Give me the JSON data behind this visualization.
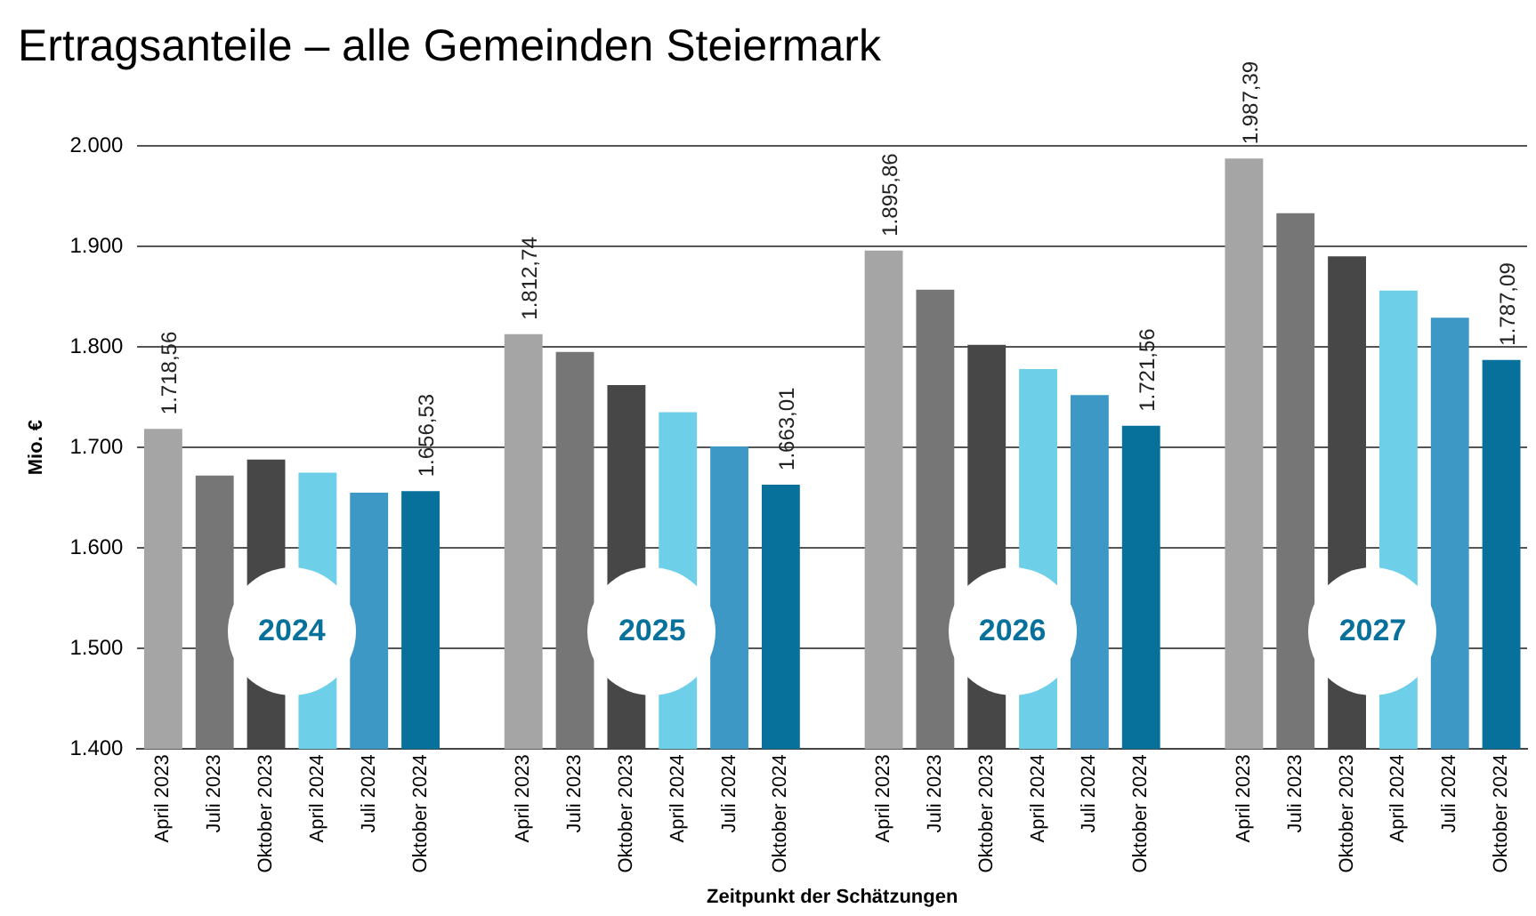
{
  "chart_data": {
    "type": "bar",
    "title": "Ertragsanteile – alle Gemeinden Steiermark",
    "xlabel": "Zeitpunkt der Schätzungen",
    "ylabel": "Mio. €",
    "categories": [
      "April 2023",
      "Juli 2023",
      "Oktober 2023",
      "April 2024",
      "Juli 2024",
      "Oktober 2024",
      null,
      "April 2023",
      "Juli 2023",
      "Oktober 2023",
      "April 2024",
      "Juli 2024",
      "Oktober 2024",
      null,
      "April 2023",
      "Juli 2023",
      "Oktober 2023",
      "April 2024",
      "Juli 2024",
      "Oktober 2024",
      null,
      "April 2023",
      "Juli 2023",
      "Oktober 2023",
      "April 2024",
      "Juli 2024",
      "Oktober 2024"
    ],
    "values": [
      1718.56,
      1672,
      1688,
      1675,
      1655,
      1656.53,
      null,
      1812.74,
      1795,
      1762,
      1735,
      1701,
      1663.01,
      null,
      1895.86,
      1857,
      1802,
      1778,
      1752,
      1721.56,
      null,
      1987.39,
      1933,
      1890,
      1856,
      1829,
      1787.09
    ],
    "value_labels": [
      "1.718,56",
      null,
      null,
      null,
      null,
      "1.656,53",
      null,
      "1.812,74",
      null,
      null,
      null,
      null,
      "1.663,01",
      null,
      "1.895,86",
      null,
      null,
      null,
      null,
      "1.721,56",
      null,
      "1.987,39",
      null,
      null,
      null,
      null,
      "1.787,09"
    ],
    "colors": [
      "#a5a5a5",
      "#767676",
      "#474747",
      "#6dcfe8",
      "#3e98c6",
      "#07719b",
      "#ffffff",
      "#a5a5a5",
      "#767676",
      "#474747",
      "#6dcfe8",
      "#3e98c6",
      "#07719b",
      "#ffffff",
      "#a5a5a5",
      "#767676",
      "#474747",
      "#6dcfe8",
      "#3e98c6",
      "#07719b",
      "#ffffff",
      "#a5a5a5",
      "#767676",
      "#474747",
      "#6dcfe8",
      "#3e98c6",
      "#07719b"
    ],
    "ylim": [
      1400,
      2000
    ],
    "yticks": [
      {
        "value": 1400,
        "label": "1.400"
      },
      {
        "value": 1500,
        "label": "1.500"
      },
      {
        "value": 1600,
        "label": "1.600"
      },
      {
        "value": 1700,
        "label": "1.700"
      },
      {
        "value": 1800,
        "label": "1.800"
      },
      {
        "value": 1900,
        "label": "1.900"
      },
      {
        "value": 2000,
        "label": "2.000"
      }
    ],
    "grid": "y",
    "legend": false,
    "annotations": [
      "2024",
      "2025",
      "2026",
      "2027"
    ]
  }
}
